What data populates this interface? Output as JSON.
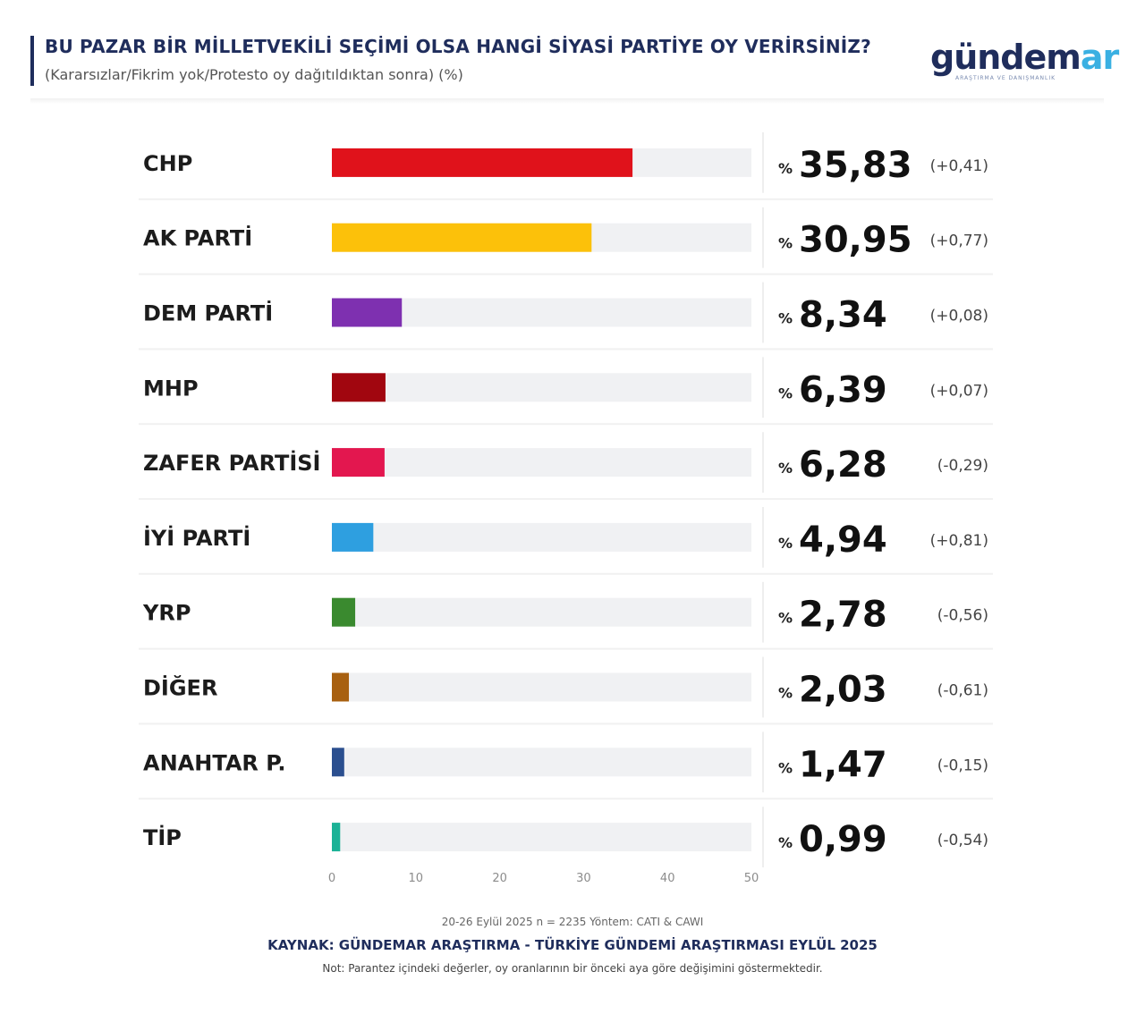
{
  "header": {
    "title": "BU PAZAR BİR MİLLETVEKİLİ SEÇİMİ OLSA HANGİ SİYASİ PARTİYE OY VERİRSİNİZ?",
    "subtitle": "(Kararsızlar/Fikrim yok/Protesto oy dağıtıldıktan sonra) (%)"
  },
  "logo": {
    "text_main": "gündem",
    "text_accent": "ar",
    "tagline": "ARAŞTIRMA VE DANIŞMANLIK"
  },
  "chart_data": {
    "type": "bar",
    "orientation": "horizontal",
    "title": "BU PAZAR BİR MİLLETVEKİLİ SEÇİMİ OLSA HANGİ SİYASİ PARTİYE OY VERİRSİNİZ?",
    "categories": [
      "CHP",
      "AK PARTİ",
      "DEM PARTİ",
      "MHP",
      "ZAFER PARTİSİ",
      "İYİ PARTİ",
      "YRP",
      "DİĞER",
      "ANAHTAR P.",
      "TİP"
    ],
    "values": [
      35.83,
      30.95,
      8.34,
      6.39,
      6.28,
      4.94,
      2.78,
      2.03,
      1.47,
      0.99
    ],
    "value_labels": [
      "35,83",
      "30,95",
      "8,34",
      "6,39",
      "6,28",
      "4,94",
      "2,78",
      "2,03",
      "1,47",
      "0,99"
    ],
    "value_prefix": "%",
    "changes": [
      "(+0,41)",
      "(+0,77)",
      "(+0,08)",
      "(+0,07)",
      "(-0,29)",
      "(+0,81)",
      "(-0,56)",
      "(-0,61)",
      "(-0,15)",
      "(-0,54)"
    ],
    "colors": [
      "#e0121b",
      "#fcc10a",
      "#7e30b0",
      "#a1060f",
      "#e3174f",
      "#2e9fe0",
      "#3a8a2f",
      "#a86010",
      "#2b4f8f",
      "#1bb296"
    ],
    "xlim": [
      0,
      50
    ],
    "xticks": [
      0,
      10,
      20,
      30,
      40,
      50
    ],
    "xtick_labels": [
      "0",
      "10",
      "20",
      "30",
      "40",
      "50"
    ],
    "grid": false,
    "legend": "none"
  },
  "footer": {
    "method": "20-26 Eylül 2025 n = 2235 Yöntem: CATI & CAWI",
    "source": "KAYNAK: GÜNDEMAR ARAŞTIRMA - TÜRKİYE GÜNDEMİ ARAŞTIRMASI EYLÜL 2025",
    "note": "Not: Parantez içindeki değerler, oy oranlarının bir önceki aya göre değişimini göstermektedir."
  }
}
